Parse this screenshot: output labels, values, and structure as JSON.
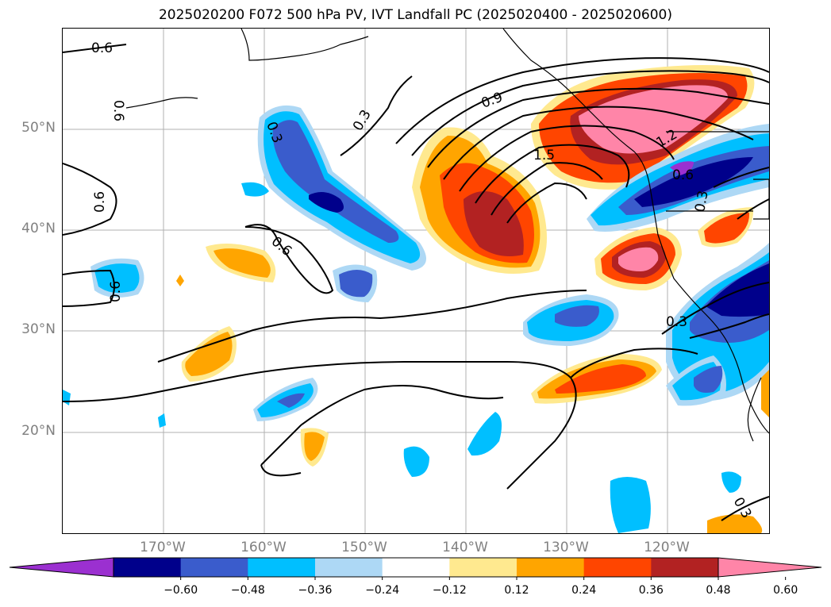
{
  "title": "2025020200 F072 500 hPa PV, IVT Landfall PC (2025020400 - 2025020600)",
  "lat_labels": [
    "50°N",
    "40°N",
    "30°N",
    "20°N"
  ],
  "lon_labels": [
    "170°W",
    "160°W",
    "150°W",
    "140°W",
    "130°W",
    "120°W"
  ],
  "contour_labels": [
    "0.6",
    "0.3",
    "0.6",
    "0.6",
    "0.6",
    "0.9",
    "1.5",
    "1.2",
    "0.6",
    "0.3",
    "0.3",
    "0.6",
    "0.3",
    "0.3"
  ],
  "colorbar": {
    "ticks": [
      "−0.60",
      "−0.48",
      "−0.36",
      "−0.24",
      "−0.12",
      "0.12",
      "0.24",
      "0.36",
      "0.48",
      "0.60"
    ],
    "colors": [
      "#9b30d0",
      "#00008b",
      "#3a5ccc",
      "#00bfff",
      "#add8f5",
      "#ffffff",
      "#ffe98f",
      "#ffa500",
      "#ff4500",
      "#b22222",
      "#ff85a8"
    ]
  }
}
